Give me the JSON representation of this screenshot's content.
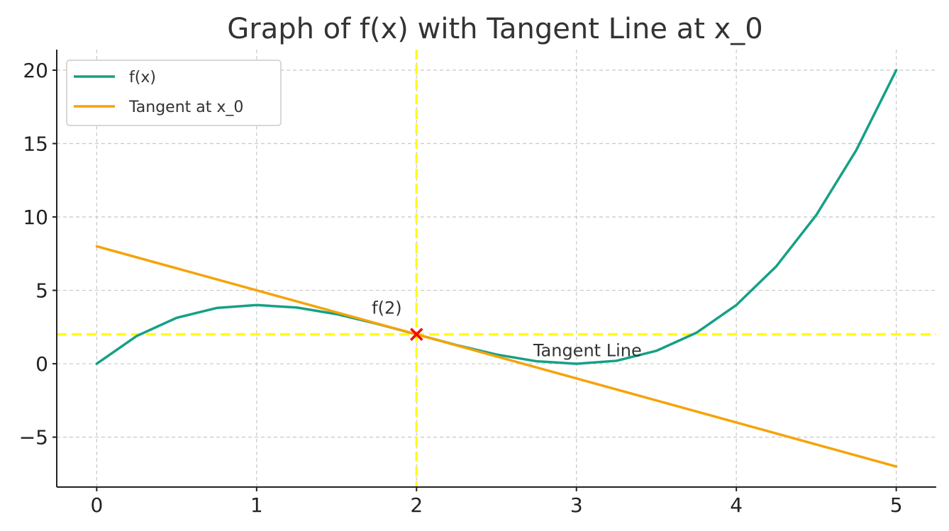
{
  "chart_data": {
    "type": "line",
    "title": "Graph of f(x) with Tangent Line at x_0",
    "xlabel": "",
    "ylabel": "",
    "xlim": [
      -0.25,
      5.25
    ],
    "ylim": [
      -8.4,
      21.4
    ],
    "x_ticks": [
      0,
      1,
      2,
      3,
      4,
      5
    ],
    "y_ticks": [
      -5,
      0,
      5,
      10,
      15,
      20
    ],
    "y_tick_labels": [
      "−5",
      "0",
      "5",
      "10",
      "15",
      "20"
    ],
    "grid": true,
    "legend_position": "top-left",
    "series": [
      {
        "name": "f(x)",
        "color": "#16a085",
        "x": [
          0,
          0.25,
          0.5,
          0.75,
          1,
          1.25,
          1.5,
          1.75,
          2,
          2.25,
          2.5,
          2.75,
          3,
          3.25,
          3.5,
          3.75,
          4,
          4.25,
          4.5,
          4.75,
          5
        ],
        "y": [
          0,
          1.89,
          3.13,
          3.8,
          4.0,
          3.83,
          3.38,
          2.73,
          2.0,
          1.27,
          0.63,
          0.17,
          0.0,
          0.2,
          0.88,
          2.11,
          4.0,
          6.64,
          10.13,
          14.55,
          20.0
        ]
      },
      {
        "name": "Tangent at x_0",
        "color": "#f5a30a",
        "x": [
          0,
          5
        ],
        "y": [
          8,
          -7
        ]
      }
    ],
    "reference_lines": [
      {
        "orientation": "vertical",
        "value": 2,
        "color": "#ffff00"
      },
      {
        "orientation": "horizontal",
        "value": 2,
        "color": "#ffff00"
      }
    ],
    "marker": {
      "x": 2,
      "y": 2,
      "symbol": "x",
      "color": "#ff0000"
    },
    "annotations": [
      {
        "text": "f(2)",
        "x": 1.72,
        "y": 3.4
      },
      {
        "text": "Tangent Line",
        "x": 2.73,
        "y": 0.5
      }
    ]
  }
}
